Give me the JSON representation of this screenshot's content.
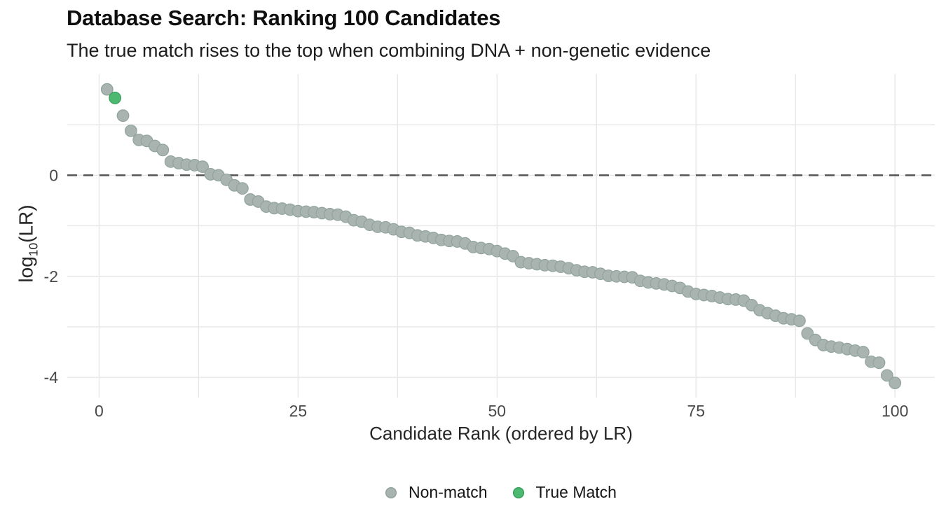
{
  "chart_data": {
    "type": "scatter",
    "title": "Database Search: Ranking 100 Candidates",
    "subtitle": "The true match rises to the top when combining DNA + non-genetic evidence",
    "xlabel": "Candidate Rank (ordered by LR)",
    "ylabel": "log10(LR)",
    "ylabel_parts": {
      "main": "log",
      "sub": "10",
      "tail": "(LR)"
    },
    "background": "#ffffff",
    "grid_color": "#e7e7e7",
    "tick_color": "#4a4a4a",
    "marker_radius": 8.3,
    "x_axis": {
      "domain": [
        -4,
        105
      ],
      "tick_values": [
        0,
        25,
        50,
        75,
        100
      ],
      "tick_labels": [
        "0",
        "25",
        "50",
        "75",
        "100"
      ],
      "grid_values": [
        0,
        12.5,
        25,
        37.5,
        50,
        62.5,
        75,
        87.5,
        100
      ]
    },
    "y_axis": {
      "domain": [
        -4.4,
        2.0
      ],
      "tick_values": [
        0,
        -2,
        -4
      ],
      "tick_labels": [
        "0",
        "-2",
        "-4"
      ],
      "grid_values": [
        1,
        0,
        -1,
        -2,
        -3,
        -4
      ]
    },
    "ref_line": {
      "y": 0,
      "color": "#555555",
      "width": 2.6,
      "dash": [
        14,
        9
      ]
    },
    "legend_position": "bottom-center",
    "series": [
      {
        "name": "Non-match",
        "color": "#a9b4b0",
        "edge_color": "#91a39d",
        "points": [
          [
            1,
            1.7
          ],
          [
            3,
            1.18
          ],
          [
            4,
            0.88
          ],
          [
            5,
            0.7
          ],
          [
            6,
            0.68
          ],
          [
            7,
            0.58
          ],
          [
            8,
            0.5
          ],
          [
            9,
            0.27
          ],
          [
            10,
            0.24
          ],
          [
            11,
            0.21
          ],
          [
            12,
            0.2
          ],
          [
            13,
            0.17
          ],
          [
            14,
            0.02
          ],
          [
            15,
            0.0
          ],
          [
            16,
            -0.09
          ],
          [
            17,
            -0.2
          ],
          [
            18,
            -0.26
          ],
          [
            19,
            -0.48
          ],
          [
            20,
            -0.52
          ],
          [
            21,
            -0.62
          ],
          [
            22,
            -0.65
          ],
          [
            23,
            -0.66
          ],
          [
            24,
            -0.68
          ],
          [
            25,
            -0.71
          ],
          [
            26,
            -0.72
          ],
          [
            27,
            -0.73
          ],
          [
            28,
            -0.75
          ],
          [
            29,
            -0.77
          ],
          [
            30,
            -0.78
          ],
          [
            31,
            -0.82
          ],
          [
            32,
            -0.89
          ],
          [
            33,
            -0.92
          ],
          [
            34,
            -0.98
          ],
          [
            35,
            -1.02
          ],
          [
            36,
            -1.03
          ],
          [
            37,
            -1.07
          ],
          [
            38,
            -1.12
          ],
          [
            39,
            -1.14
          ],
          [
            40,
            -1.19
          ],
          [
            41,
            -1.21
          ],
          [
            42,
            -1.24
          ],
          [
            43,
            -1.28
          ],
          [
            44,
            -1.3
          ],
          [
            45,
            -1.31
          ],
          [
            46,
            -1.35
          ],
          [
            47,
            -1.42
          ],
          [
            48,
            -1.44
          ],
          [
            49,
            -1.46
          ],
          [
            50,
            -1.5
          ],
          [
            51,
            -1.55
          ],
          [
            52,
            -1.6
          ],
          [
            53,
            -1.72
          ],
          [
            54,
            -1.74
          ],
          [
            55,
            -1.76
          ],
          [
            56,
            -1.78
          ],
          [
            57,
            -1.79
          ],
          [
            58,
            -1.81
          ],
          [
            59,
            -1.84
          ],
          [
            60,
            -1.88
          ],
          [
            61,
            -1.91
          ],
          [
            62,
            -1.92
          ],
          [
            63,
            -1.95
          ],
          [
            64,
            -1.99
          ],
          [
            65,
            -2.0
          ],
          [
            66,
            -2.01
          ],
          [
            67,
            -2.02
          ],
          [
            68,
            -2.09
          ],
          [
            69,
            -2.12
          ],
          [
            70,
            -2.14
          ],
          [
            71,
            -2.16
          ],
          [
            72,
            -2.19
          ],
          [
            73,
            -2.23
          ],
          [
            74,
            -2.3
          ],
          [
            75,
            -2.35
          ],
          [
            76,
            -2.37
          ],
          [
            77,
            -2.39
          ],
          [
            78,
            -2.42
          ],
          [
            79,
            -2.45
          ],
          [
            80,
            -2.46
          ],
          [
            81,
            -2.48
          ],
          [
            82,
            -2.57
          ],
          [
            83,
            -2.67
          ],
          [
            84,
            -2.73
          ],
          [
            85,
            -2.78
          ],
          [
            86,
            -2.83
          ],
          [
            87,
            -2.85
          ],
          [
            88,
            -2.88
          ],
          [
            89,
            -3.13
          ],
          [
            90,
            -3.26
          ],
          [
            91,
            -3.36
          ],
          [
            92,
            -3.39
          ],
          [
            93,
            -3.41
          ],
          [
            94,
            -3.44
          ],
          [
            95,
            -3.47
          ],
          [
            96,
            -3.5
          ],
          [
            97,
            -3.69
          ],
          [
            98,
            -3.71
          ],
          [
            99,
            -3.96
          ],
          [
            100,
            -4.11
          ]
        ]
      },
      {
        "name": "True Match",
        "color": "#4db870",
        "edge_color": "#38a05d",
        "points": [
          [
            2,
            1.53
          ]
        ]
      }
    ]
  }
}
